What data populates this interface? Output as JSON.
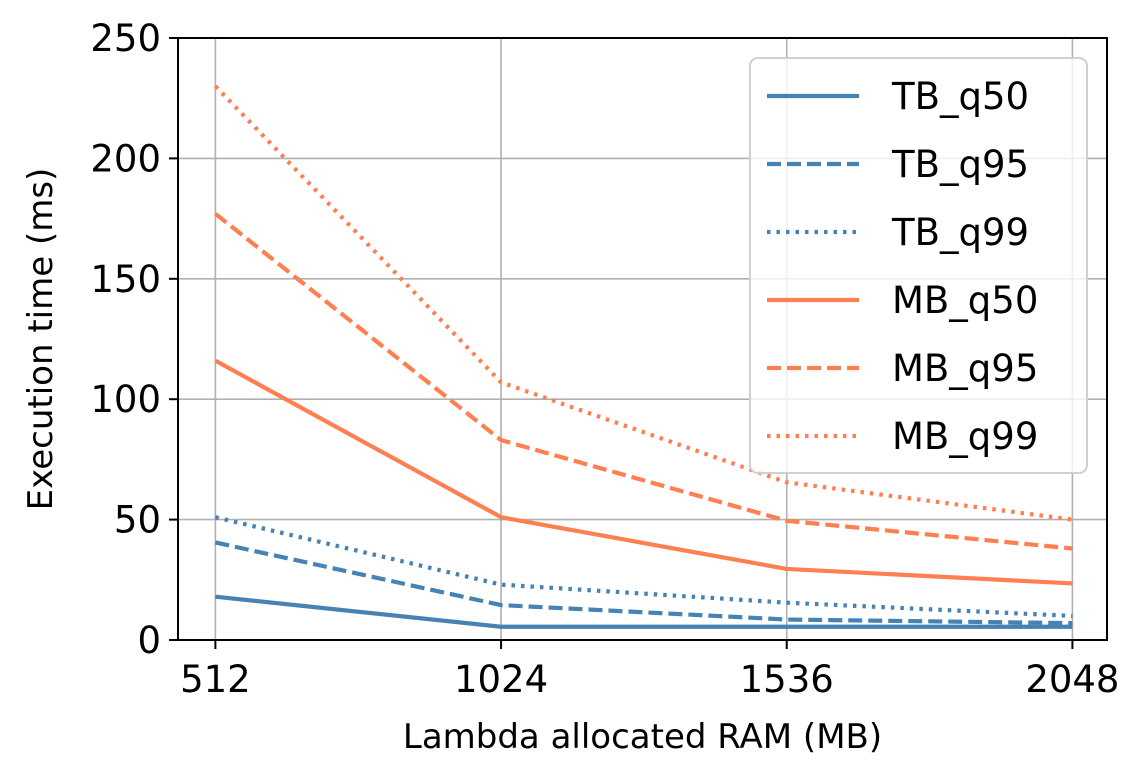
{
  "chart_data": {
    "type": "line",
    "xlabel": "Lambda allocated RAM (MB)",
    "ylabel": "Execution time (ms)",
    "x": [
      512,
      1024,
      1536,
      2048
    ],
    "xlim": [
      445,
      2110
    ],
    "ylim": [
      0,
      250
    ],
    "yticks": [
      0,
      50,
      100,
      150,
      200,
      250
    ],
    "grid": true,
    "legend_position": "top-right",
    "series": [
      {
        "name": "TB_q50",
        "color": "#4682b4",
        "dash": "solid",
        "values": [
          18,
          5.5,
          5.5,
          5.5
        ]
      },
      {
        "name": "TB_q95",
        "color": "#4682b4",
        "dash": "dashed",
        "values": [
          40.5,
          14.5,
          8.5,
          7
        ]
      },
      {
        "name": "TB_q99",
        "color": "#4682b4",
        "dash": "dotted",
        "values": [
          51,
          23,
          15.5,
          10
        ]
      },
      {
        "name": "MB_q50",
        "color": "#ff7f50",
        "dash": "solid",
        "values": [
          116,
          51,
          29.5,
          23.5
        ]
      },
      {
        "name": "MB_q95",
        "color": "#ff7f50",
        "dash": "dashed",
        "values": [
          177,
          83,
          49.5,
          38
        ]
      },
      {
        "name": "MB_q99",
        "color": "#ff7f50",
        "dash": "dotted",
        "values": [
          230,
          107,
          65.5,
          50
        ]
      }
    ]
  }
}
